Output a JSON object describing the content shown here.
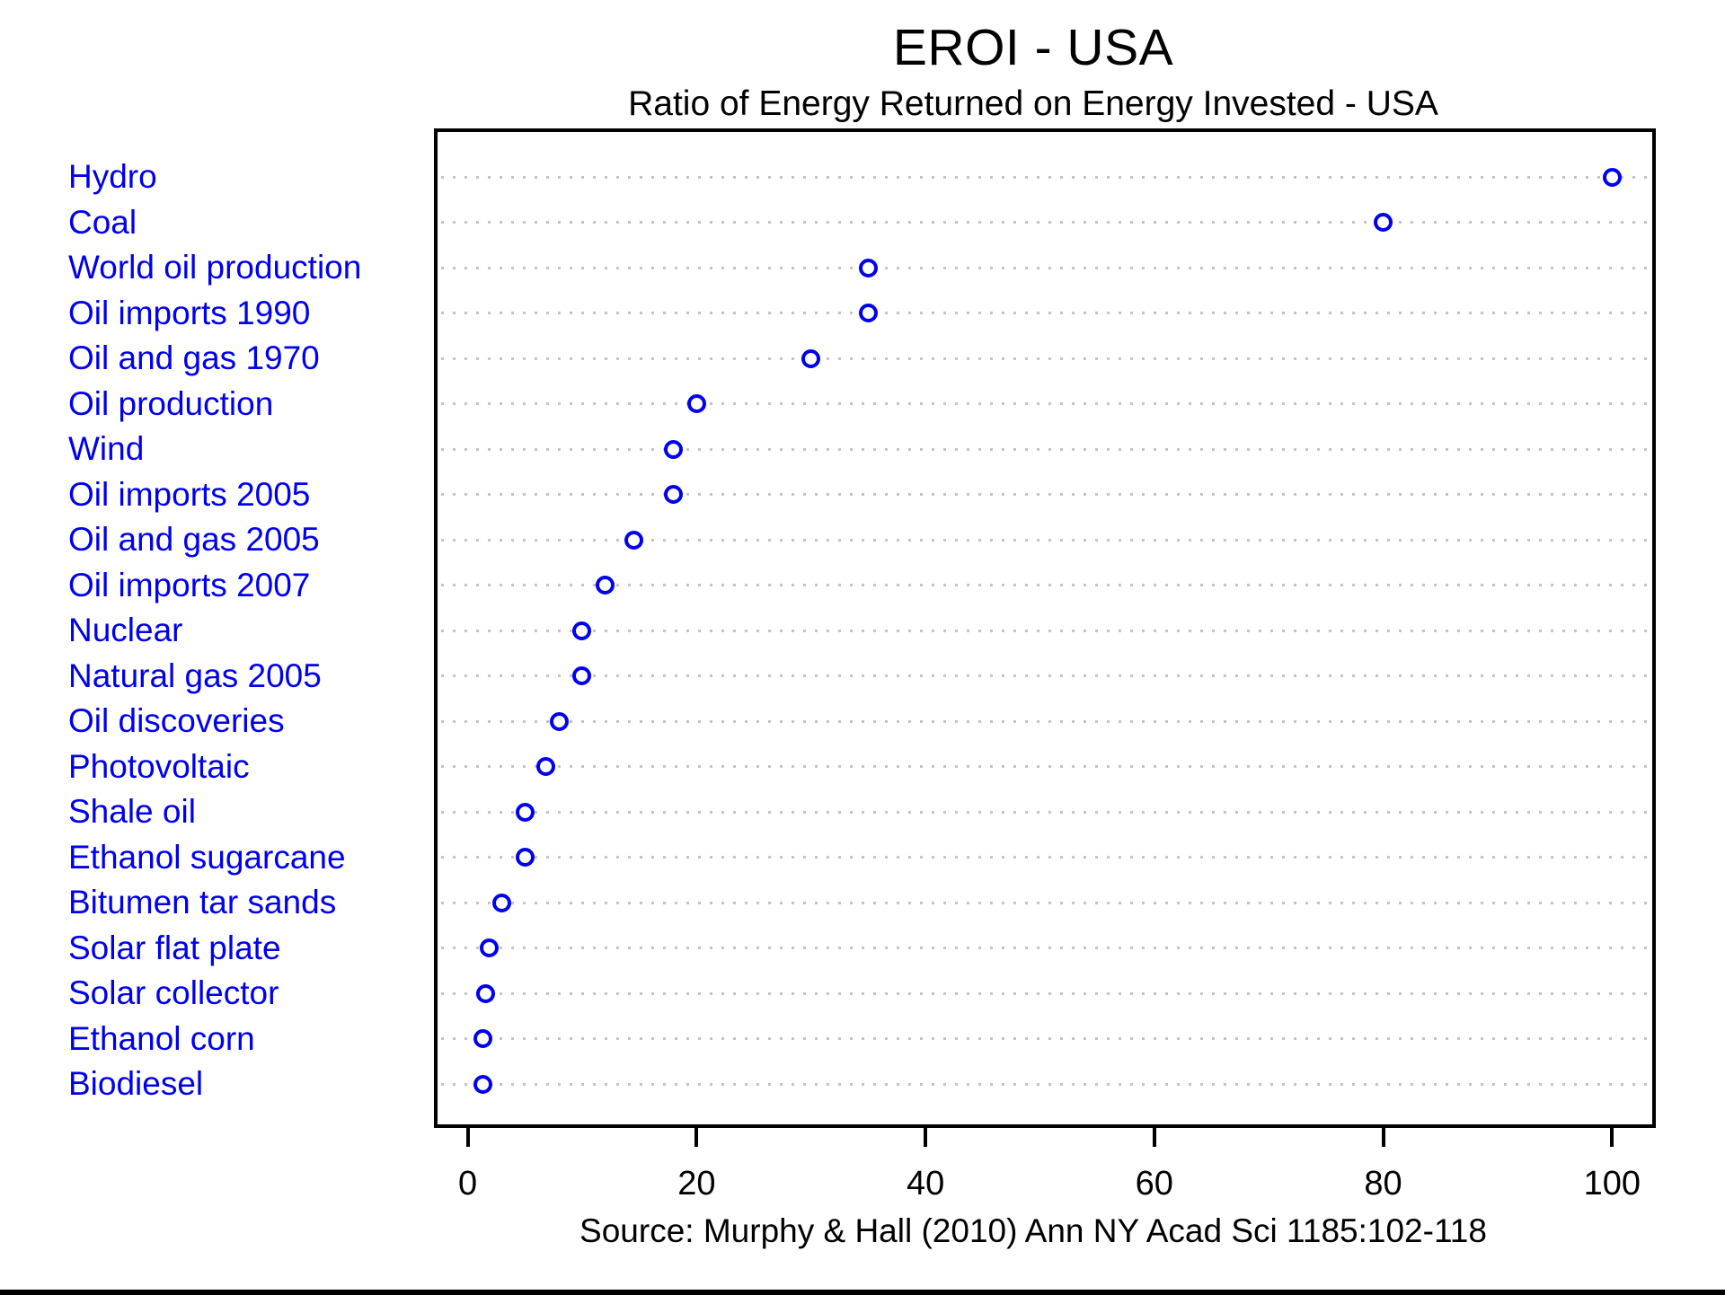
{
  "header": {
    "title": "EROI - USA",
    "subtitle": "Ratio of Energy Returned on Energy Invested - USA"
  },
  "footer": {
    "source": "Source: Murphy & Hall (2010) Ann NY Acad Sci 1185:102-118"
  },
  "chart_data": {
    "type": "scatter",
    "variant": "horizontal-dot-plot",
    "title": "EROI - USA",
    "subtitle": "Ratio of Energy Returned on Energy Invested - USA",
    "source_caption": "Source: Murphy & Hall (2010) Ann NY Acad Sci 1185:102-118",
    "categories": [
      "Hydro",
      "Coal",
      "World oil production",
      "Oil imports 1990",
      "Oil and gas 1970",
      "Oil production",
      "Wind",
      "Oil imports 2005",
      "Oil and gas 2005",
      "Oil imports 2007",
      "Nuclear",
      "Natural gas 2005",
      "Oil discoveries",
      "Photovoltaic",
      "Shale oil",
      "Ethanol sugarcane",
      "Bitumen tar sands",
      "Solar flat plate",
      "Solar collector",
      "Ethanol corn",
      "Biodiesel"
    ],
    "values": [
      100,
      80,
      35,
      35,
      30,
      20,
      18,
      18,
      14.5,
      12,
      10,
      10,
      8,
      6.8,
      5,
      5,
      3,
      1.9,
      1.6,
      1.3,
      1.3
    ],
    "x_ticks": [
      0,
      20,
      40,
      60,
      80,
      100
    ],
    "xlim": [
      -2.7,
      103.9
    ],
    "xlabel": "",
    "ylabel": "",
    "grid": "dotted horizontal lines, one per category",
    "legend": "none",
    "colors": {
      "category_label": "#0000EE",
      "marker_stroke": "#0000EE",
      "marker_fill": "#FFFFFF",
      "grid_dots": "#C4C4C4",
      "axis_and_text": "#000000",
      "background": "#FFFFFF"
    }
  }
}
